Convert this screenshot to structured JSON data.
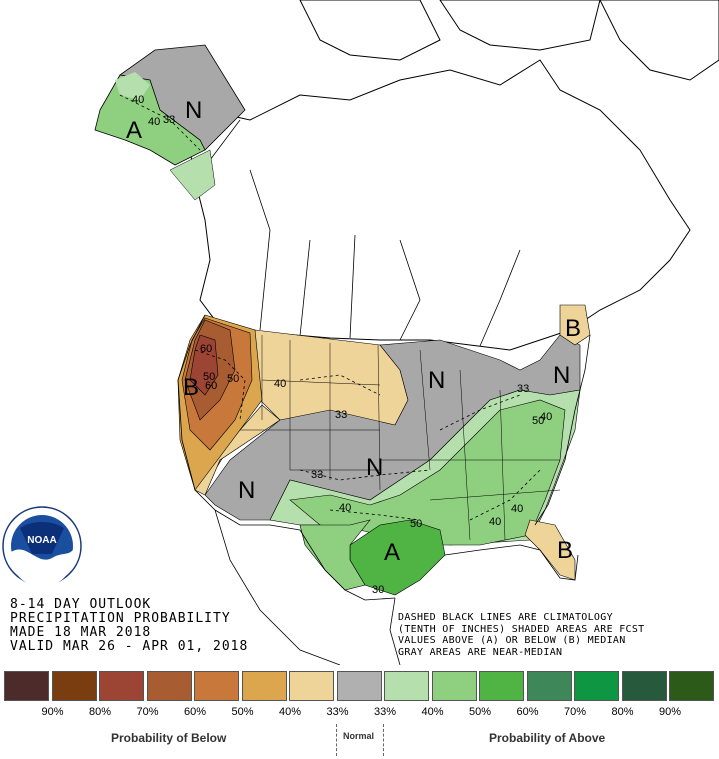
{
  "title_lines": [
    "8-14 DAY OUTLOOK",
    "PRECIPITATION PROBABILITY",
    "MADE  18 MAR 2018",
    "VALID  MAR 26 - APR 01, 2018"
  ],
  "notes": [
    "DASHED BLACK LINES ARE CLIMATOLOGY",
    "(TENTH OF INCHES) SHADED AREAS ARE FCST",
    "VALUES ABOVE (A) OR BELOW (B) MEDIAN",
    "GRAY AREAS ARE NEAR-MEDIAN"
  ],
  "logo": {
    "text": "NOAA",
    "ring_text": "NATIONAL OCEANIC AND ATMOSPHERIC ADMINISTRATION · U.S. DEPARTMENT OF COMMERCE"
  },
  "legend": {
    "swatches": [
      {
        "color": "#4d2b2b",
        "label": "90%"
      },
      {
        "color": "#7a3d10",
        "label": "80%"
      },
      {
        "color": "#9c4534",
        "label": "70%"
      },
      {
        "color": "#a85c32",
        "label": "60%"
      },
      {
        "color": "#c8783a",
        "label": "50%"
      },
      {
        "color": "#dba64e",
        "label": "40%"
      },
      {
        "color": "#efd49a",
        "label": "33%"
      },
      {
        "color": "#b0b0b0",
        "label": "33%"
      },
      {
        "color": "#b5e0ad",
        "label": "40%"
      },
      {
        "color": "#8fd080",
        "label": "50%"
      },
      {
        "color": "#50b444",
        "label": "60%"
      },
      {
        "color": "#3d8758",
        "label": "70%"
      },
      {
        "color": "#0e9642",
        "label": "80%"
      },
      {
        "color": "#275a3c",
        "label": "90%"
      },
      {
        "color": "#2c5a19",
        "label": ""
      }
    ],
    "below_caption": "Probability of Below",
    "normal_caption": "Normal",
    "above_caption": "Probability of Above"
  },
  "map_labels": {
    "letters": [
      {
        "text": "N",
        "region": "alaska-north"
      },
      {
        "text": "A",
        "region": "alaska-south"
      },
      {
        "text": "B",
        "region": "pacific-northwest"
      },
      {
        "text": "N",
        "region": "southwest"
      },
      {
        "text": "N",
        "region": "central-plains"
      },
      {
        "text": "N",
        "region": "great-lakes"
      },
      {
        "text": "N",
        "region": "northeast"
      },
      {
        "text": "B",
        "region": "new-england"
      },
      {
        "text": "A",
        "region": "texas"
      },
      {
        "text": "B",
        "region": "florida"
      }
    ],
    "contours": [
      "40",
      "40",
      "33",
      "60",
      "50",
      "60",
      "50",
      "40",
      "33",
      "33",
      "33",
      "40",
      "50",
      "40",
      "40",
      "50",
      "33",
      "40",
      "30"
    ]
  },
  "colors": {
    "below_33": "#efd49a",
    "below_40": "#dba64e",
    "below_50": "#c8783a",
    "below_60": "#a85c32",
    "below_70": "#9c4534",
    "normal": "#a8a8a8",
    "above_33": "#b5e0ad",
    "above_40": "#8fd080",
    "above_50": "#50b444",
    "above_60": "#50b444"
  }
}
